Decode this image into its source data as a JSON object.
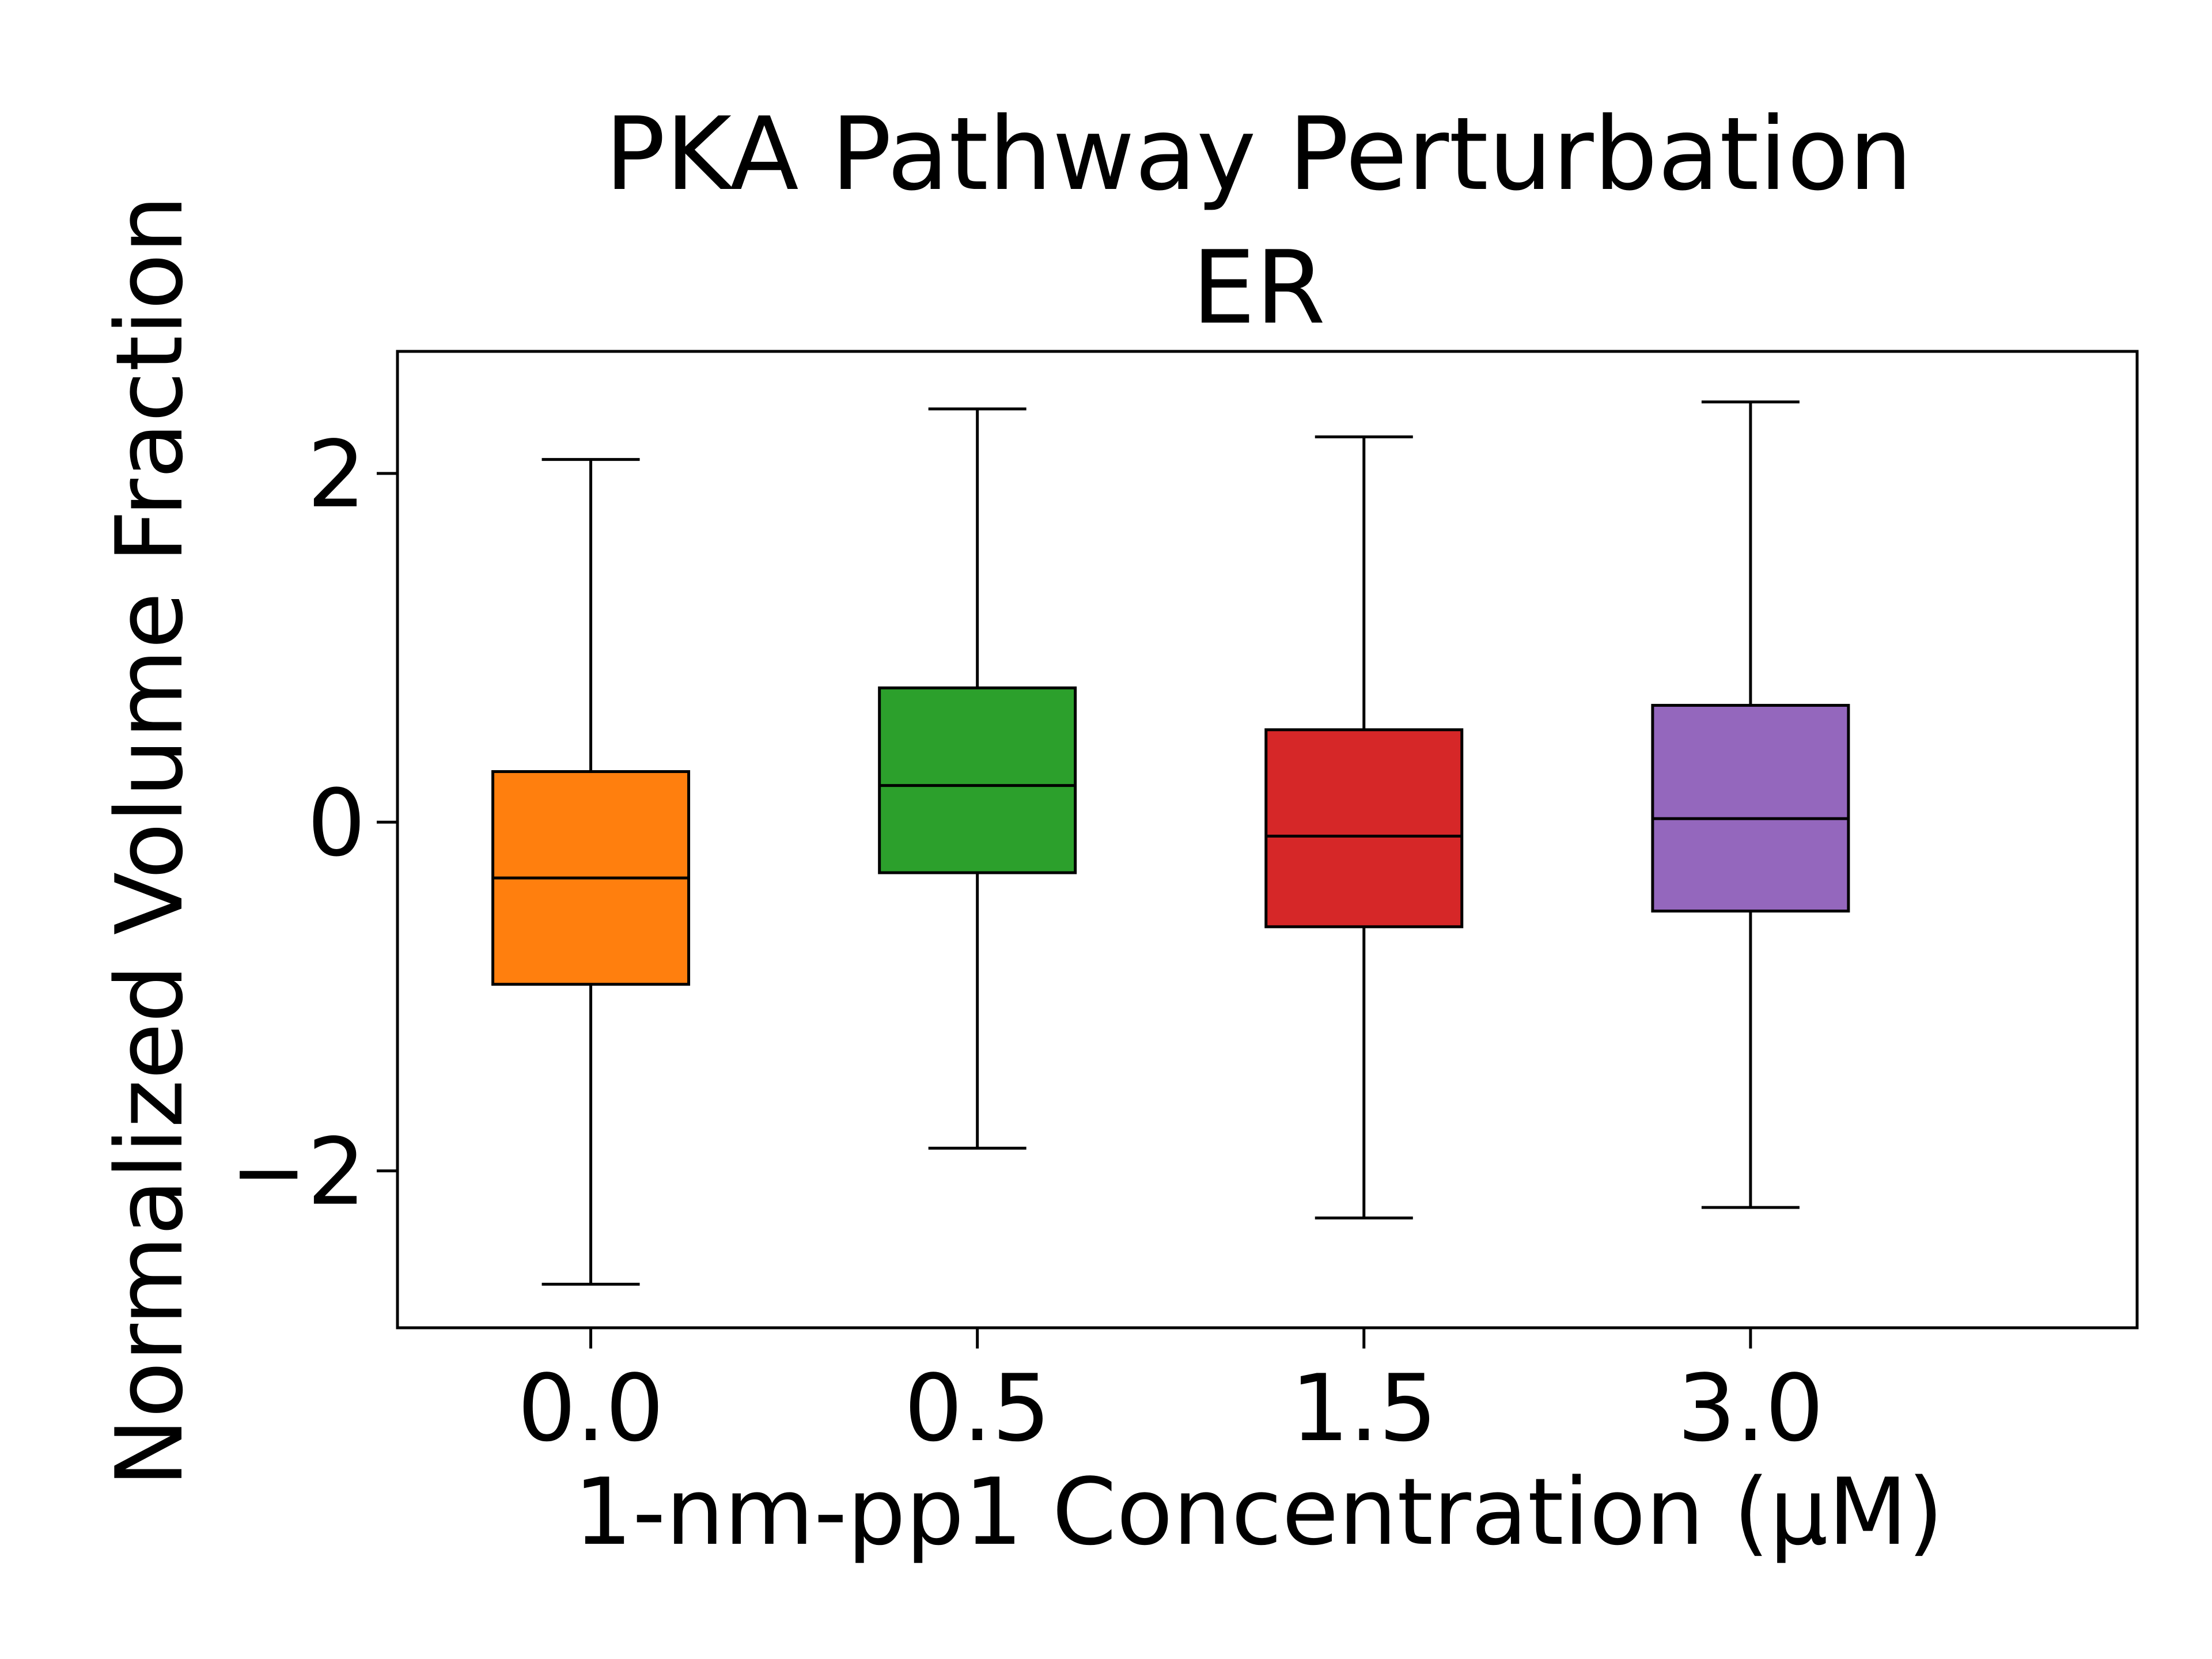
{
  "chart_data": {
    "type": "box",
    "title": "PKA Pathway Perturbation",
    "subtitle": "ER",
    "xlabel": "1-nm-pp1 Concentration (μM)",
    "ylabel": "Normalized Volume Fraction",
    "ylim": [
      -2.9,
      2.7
    ],
    "yticks": [
      -2,
      0,
      2
    ],
    "ytick_labels": [
      "−2",
      "0",
      "2"
    ],
    "categories": [
      "0.0",
      "0.5",
      "1.5",
      "3.0"
    ],
    "colors": [
      "#ff7f0e",
      "#2ca02c",
      "#d62728",
      "#9467bd"
    ],
    "boxes": [
      {
        "whisker_low": -2.65,
        "q1": -0.93,
        "median": -0.32,
        "q3": 0.29,
        "whisker_high": 2.08
      },
      {
        "whisker_low": -1.87,
        "q1": -0.29,
        "median": 0.21,
        "q3": 0.77,
        "whisker_high": 2.37
      },
      {
        "whisker_low": -2.27,
        "q1": -0.6,
        "median": -0.08,
        "q3": 0.53,
        "whisker_high": 2.21
      },
      {
        "whisker_low": -2.21,
        "q1": -0.51,
        "median": 0.02,
        "q3": 0.67,
        "whisker_high": 2.41
      }
    ],
    "grid": false,
    "legend": "none"
  }
}
